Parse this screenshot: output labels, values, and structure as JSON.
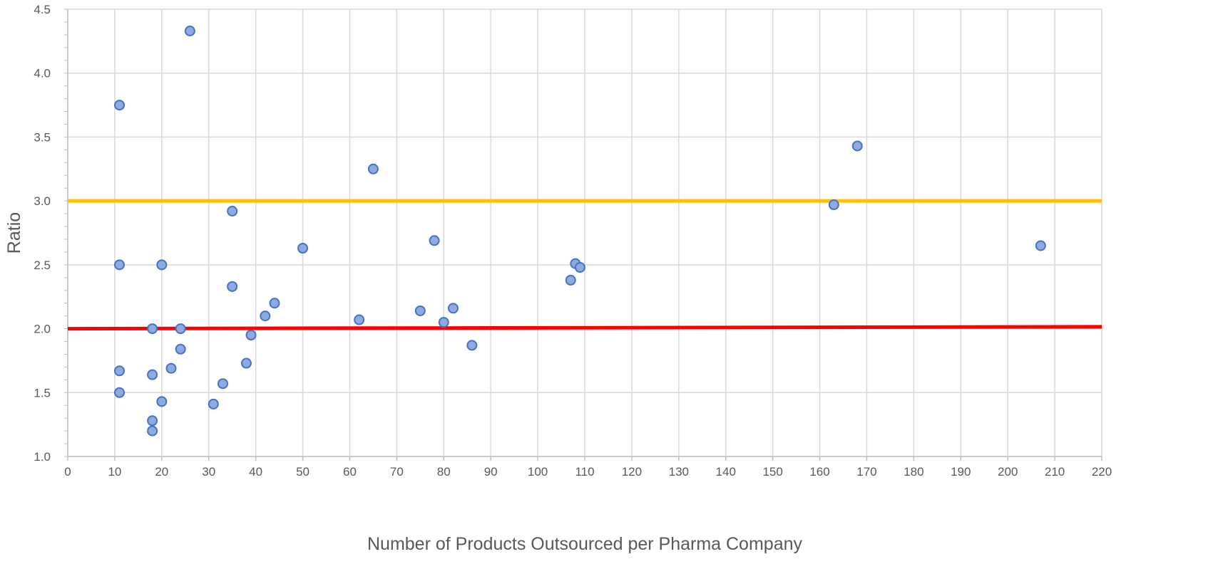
{
  "chart_data": {
    "type": "scatter",
    "title": "",
    "xlabel": "Number of Products Outsourced per Pharma Company",
    "ylabel": "Ratio",
    "xlim": [
      0,
      220
    ],
    "ylim": [
      1.0,
      4.5
    ],
    "xticks": [
      0,
      10,
      20,
      30,
      40,
      50,
      60,
      70,
      80,
      90,
      100,
      110,
      120,
      130,
      140,
      150,
      160,
      170,
      180,
      190,
      200,
      210,
      220
    ],
    "yticks": [
      "1.0",
      "1.5",
      "2.0",
      "2.5",
      "3.0",
      "3.5",
      "4.0",
      "4.5"
    ],
    "grid": true,
    "legend": "none",
    "points": [
      [
        26,
        4.33
      ],
      [
        11,
        3.75
      ],
      [
        65,
        3.25
      ],
      [
        168,
        3.43
      ],
      [
        163,
        2.97
      ],
      [
        35,
        2.92
      ],
      [
        50,
        2.63
      ],
      [
        78,
        2.69
      ],
      [
        207,
        2.65
      ],
      [
        11,
        2.5
      ],
      [
        20,
        2.5
      ],
      [
        108,
        2.51
      ],
      [
        109,
        2.48
      ],
      [
        107,
        2.38
      ],
      [
        35,
        2.33
      ],
      [
        44,
        2.2
      ],
      [
        42,
        2.1
      ],
      [
        62,
        2.07
      ],
      [
        75,
        2.14
      ],
      [
        82,
        2.16
      ],
      [
        80,
        2.05
      ],
      [
        18,
        2.0
      ],
      [
        24,
        2.0
      ],
      [
        39,
        1.95
      ],
      [
        86,
        1.87
      ],
      [
        24,
        1.84
      ],
      [
        38,
        1.73
      ],
      [
        22,
        1.69
      ],
      [
        11,
        1.67
      ],
      [
        18,
        1.64
      ],
      [
        33,
        1.57
      ],
      [
        11,
        1.5
      ],
      [
        20,
        1.43
      ],
      [
        31,
        1.41
      ],
      [
        18,
        1.28
      ],
      [
        18,
        1.2
      ]
    ],
    "reference_lines": [
      {
        "color": "#ffc000",
        "from": [
          0,
          3.0
        ],
        "to": [
          220,
          3.0
        ]
      },
      {
        "color": "#ff0000",
        "from": [
          0,
          2.0
        ],
        "to": [
          220,
          2.015
        ]
      }
    ],
    "marker_fill": "#8faadc",
    "marker_stroke": "#4472c4"
  }
}
